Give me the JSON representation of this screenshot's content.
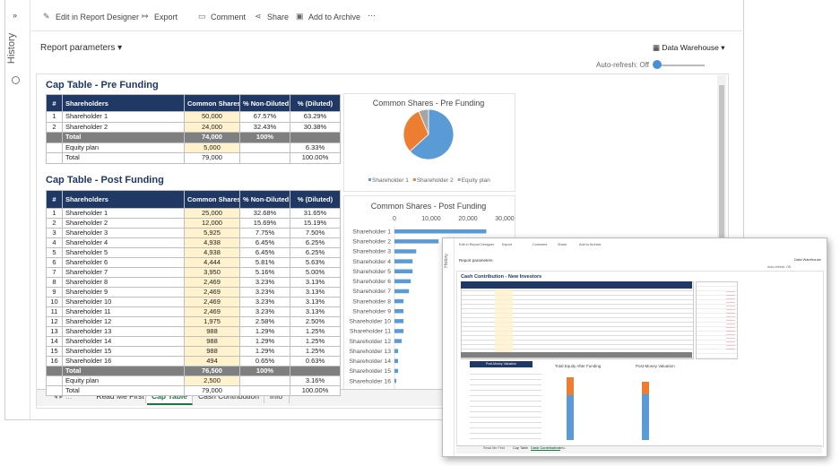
{
  "toolbar": [
    "Edit in Report Designer",
    "Export",
    "Comment",
    "Share",
    "Add to Archive"
  ],
  "sidebar": "History",
  "report_parameters": "Report parameters",
  "data_source": "Data Warehouse",
  "auto_refresh": "Auto-refresh: Off",
  "tables": [
    {
      "title": "Cap Table - Pre Funding",
      "headers": [
        "#",
        "Shareholders",
        "Common Shares",
        "% Non-Diluted",
        "% (Diluted)"
      ],
      "rows": [
        [
          "1",
          "Shareholder 1",
          "50,000",
          "67.57%",
          "63.29%"
        ],
        [
          "2",
          "Shareholder 2",
          "24,000",
          "32.43%",
          "30.38%"
        ],
        [
          null,
          "Total",
          "74,000",
          "100%",
          null
        ],
        [
          null,
          "Equity plan",
          "5,000",
          null,
          "6.33%"
        ],
        [
          null,
          "Total",
          "79,000",
          null,
          "100.00%"
        ]
      ]
    },
    {
      "title": "Cap Table - Post Funding",
      "headers": [
        "#",
        "Shareholders",
        "Common Shares",
        "% Non-Diluted",
        "% (Diluted)"
      ],
      "rows": [
        [
          "1",
          "Shareholder 1",
          "25,000",
          "32.68%",
          "31.65%"
        ],
        [
          "2",
          "Shareholder 2",
          "12,000",
          "15.69%",
          "15.19%"
        ],
        [
          "3",
          "Shareholder 3",
          "5,925",
          "7.75%",
          "7.50%"
        ],
        [
          "4",
          "Shareholder 4",
          "4,938",
          "6.45%",
          "6.25%"
        ],
        [
          "5",
          "Shareholder 5",
          "4,938",
          "6.45%",
          "6.25%"
        ],
        [
          "6",
          "Shareholder 6",
          "4,444",
          "5.81%",
          "5.63%"
        ],
        [
          "7",
          "Shareholder 7",
          "3,950",
          "5.16%",
          "5.00%"
        ],
        [
          "8",
          "Shareholder 8",
          "2,469",
          "3.23%",
          "3.13%"
        ],
        [
          "9",
          "Shareholder 9",
          "2,469",
          "3.23%",
          "3.13%"
        ],
        [
          "10",
          "Shareholder 10",
          "2,469",
          "3.23%",
          "3.13%"
        ],
        [
          "11",
          "Shareholder 11",
          "2,469",
          "3.23%",
          "3.13%"
        ],
        [
          "12",
          "Shareholder 12",
          "1,975",
          "2.58%",
          "2.50%"
        ],
        [
          "13",
          "Shareholder 13",
          "988",
          "1.29%",
          "1.25%"
        ],
        [
          "14",
          "Shareholder 14",
          "988",
          "1.29%",
          "1.25%"
        ],
        [
          "15",
          "Shareholder 15",
          "988",
          "1.29%",
          "1.25%"
        ],
        [
          "16",
          "Shareholder 16",
          "494",
          "0.65%",
          "0.63%"
        ],
        [
          null,
          "Total",
          "76,500",
          "100%",
          null
        ],
        [
          null,
          "Equity plan",
          "2,500",
          null,
          "3.16%"
        ],
        [
          null,
          "Total",
          "79,000",
          null,
          "100.00%"
        ]
      ]
    }
  ],
  "chart_data": [
    {
      "type": "pie",
      "title": "Common Shares - Pre Funding",
      "categories": [
        "Shareholder 1",
        "Shareholder 2",
        "Equity plan"
      ],
      "values": [
        50000,
        24000,
        5000
      ],
      "colors": [
        "#5b9bd5",
        "#ed7d31",
        "#a5a5a5"
      ],
      "legend": "bottom"
    },
    {
      "type": "bar",
      "orientation": "horizontal",
      "title": "Common Shares - Post Funding",
      "categories": [
        "Shareholder 1",
        "Shareholder 2",
        "Shareholder 3",
        "Shareholder 4",
        "Shareholder 5",
        "Shareholder 6",
        "Shareholder 7",
        "Shareholder 8",
        "Shareholder 9",
        "Shareholder 10",
        "Shareholder 11",
        "Shareholder 12",
        "Shareholder 13",
        "Shareholder 14",
        "Shareholder 15",
        "Shareholder 16"
      ],
      "values": [
        25000,
        12000,
        5925,
        4938,
        4938,
        4444,
        3950,
        2469,
        2469,
        2469,
        2469,
        1975,
        988,
        988,
        988,
        494
      ],
      "color": "#5b9bd5",
      "xlim": [
        0,
        30000
      ],
      "xticks": [
        0,
        {
          "value": 10000,
          "label": "10,000"
        },
        {
          "value": 20000,
          "label": "20,000"
        },
        {
          "value": 30000,
          "label": "30,000"
        }
      ]
    }
  ],
  "tabs": [
    "Read Me First",
    "Cap Table",
    "Cash Contribution",
    "Info"
  ],
  "active_tab": "Cap Table",
  "inset": {
    "toolbar": [
      "Edit in Report Designer",
      "Export",
      "Comment",
      "Share",
      "Add to Archive"
    ],
    "sidebar": "History",
    "report_parameters": "Report parameters",
    "data_source": "Data Warehouse",
    "auto_refresh": "Auto-refresh: Off",
    "title": "Cash Contribution - New Investors",
    "section": "Post-Money Valuation",
    "chart_titles": [
      "Total Equity After Funding",
      "Post-Money Valuation"
    ],
    "tabs": [
      "Read Me First",
      "Cap Table",
      "Cash Contribution",
      "Info"
    ]
  }
}
